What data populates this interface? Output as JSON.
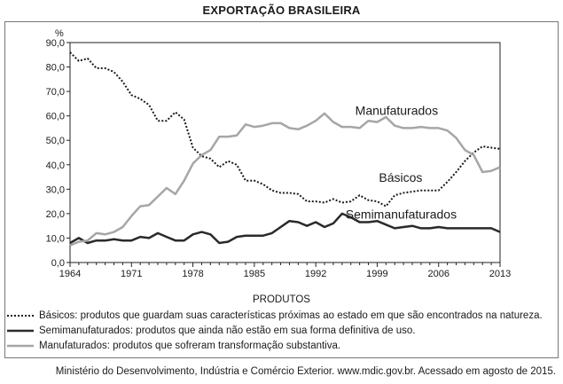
{
  "title": "EXPORTAÇÃO BRASILEIRA",
  "legend_title": "PRODUTOS",
  "legend": [
    {
      "key": "basicos",
      "text": "Básicos: produtos que guardam suas características próximas ao estado em que são encontrados na natureza.",
      "color": "#1a1a1a",
      "style": "dotted"
    },
    {
      "key": "semi",
      "text": "Semimanufaturados: produtos que ainda não estão em sua forma definitiva de uso.",
      "color": "#2a2a2a",
      "style": "solid"
    },
    {
      "key": "manu",
      "text": "Manufaturados: produtos que sofreram transformação substantiva.",
      "color": "#a6a6a6",
      "style": "solid"
    }
  ],
  "source": "Ministério do Desenvolvimento, Indústria e Comércio Exterior. www.mdic.gov.br. Acessado em agosto de 2015.",
  "chart_data": {
    "type": "line",
    "title": "EXPORTAÇÃO BRASILEIRA",
    "ylabel": "%",
    "xlabel": "",
    "xlim": [
      1964,
      2013
    ],
    "ylim": [
      0,
      90
    ],
    "x_ticks": [
      1964,
      1971,
      1978,
      1985,
      1992,
      1999,
      2006,
      2013
    ],
    "y_ticks": [
      "0,0",
      "10,0",
      "20,0",
      "30,0",
      "40,0",
      "50,0",
      "60,0",
      "70,0",
      "80,0",
      "90,0"
    ],
    "grid": false,
    "series_labels": [
      {
        "series": "manu",
        "text": "Manufaturados",
        "x": 1996.5,
        "y": 60.5
      },
      {
        "series": "basicos",
        "text": "Básicos",
        "x": 1999.2,
        "y": 33
      },
      {
        "series": "semi",
        "text": "Semimanufaturados",
        "x": 1995.4,
        "y": 18
      }
    ],
    "x": [
      1964,
      1965,
      1966,
      1967,
      1968,
      1969,
      1970,
      1971,
      1972,
      1973,
      1974,
      1975,
      1976,
      1977,
      1978,
      1979,
      1980,
      1981,
      1982,
      1983,
      1984,
      1985,
      1986,
      1987,
      1988,
      1989,
      1990,
      1991,
      1992,
      1993,
      1994,
      1995,
      1996,
      1997,
      1998,
      1999,
      2000,
      2001,
      2002,
      2003,
      2004,
      2005,
      2006,
      2007,
      2008,
      2009,
      2010,
      2011,
      2012,
      2013
    ],
    "series": [
      {
        "key": "basicos",
        "values": [
          86,
          82.5,
          83.5,
          79.5,
          79.5,
          78,
          74,
          68.5,
          67,
          64.5,
          58,
          58,
          61.5,
          58.5,
          47,
          43.5,
          42.5,
          39,
          41.5,
          40,
          33.5,
          33.5,
          32,
          29.5,
          28.5,
          28.5,
          28,
          25,
          25,
          24.5,
          26,
          24.5,
          25,
          27.5,
          25.5,
          25,
          23,
          27.5,
          28.5,
          29,
          29.5,
          29.5,
          29.5,
          33,
          37,
          41.5,
          45,
          47.5,
          47,
          46.5
        ]
      },
      {
        "key": "semi",
        "values": [
          8,
          10,
          8,
          9,
          9,
          9.5,
          9,
          9,
          10.5,
          10,
          12,
          10.5,
          9,
          9,
          11.5,
          12.5,
          11.5,
          8,
          8.5,
          10.5,
          11,
          11,
          11,
          12,
          14.5,
          17,
          16.5,
          15,
          16.5,
          14.5,
          16,
          20,
          18.5,
          16.5,
          16.5,
          17,
          15.5,
          14,
          14.5,
          15,
          14,
          14,
          14.5,
          14,
          14,
          14,
          14,
          14,
          14,
          12.5
        ]
      },
      {
        "key": "manu",
        "values": [
          7,
          8.5,
          9,
          12,
          11.5,
          12.5,
          14.5,
          19,
          23,
          23.5,
          27,
          30.5,
          28,
          33.5,
          40.5,
          44,
          46,
          51.5,
          51.5,
          52,
          56.5,
          55.5,
          56,
          57,
          57,
          55,
          54.5,
          56,
          58,
          61,
          57.5,
          55.5,
          55.5,
          55,
          58,
          57.5,
          59.5,
          56,
          55,
          55,
          55.5,
          55,
          55,
          54,
          51,
          46,
          44,
          37,
          37.5,
          39
        ]
      }
    ]
  }
}
